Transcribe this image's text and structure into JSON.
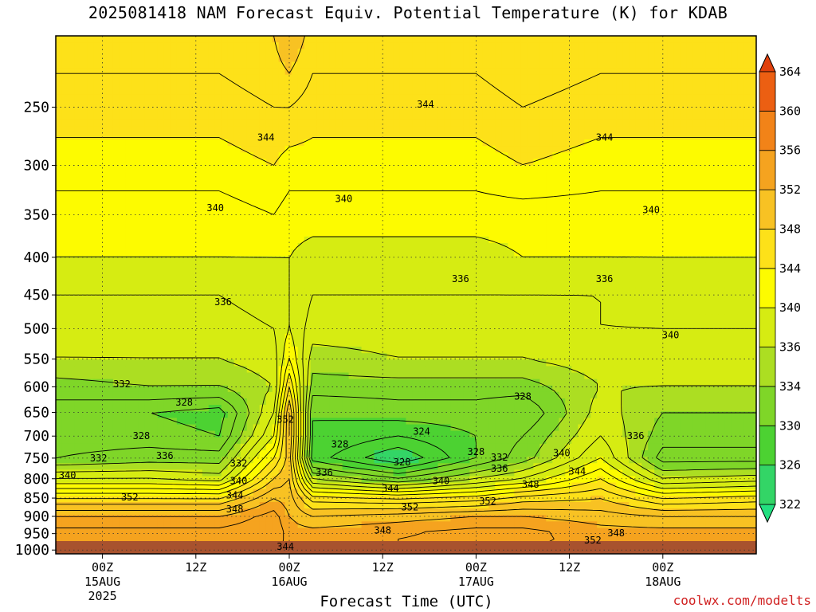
{
  "title": "2025081418 NAM Forecast Equiv. Potential Temperature (K) for KDAB",
  "credit": "coolwx.com/modelts",
  "chart_data": {
    "type": "heatmap",
    "title": "2025081418 NAM Forecast Equiv. Potential Temperature (K) for KDAB",
    "xlabel": "Forecast Time (UTC)",
    "ylabel": "",
    "x_range_hours": [
      -6,
      84
    ],
    "y_range_hPa": [
      1012,
      200
    ],
    "y_axis": "pressure (inverted, log-like)",
    "grid": true,
    "y_ticks": [
      250,
      300,
      350,
      400,
      450,
      500,
      550,
      600,
      650,
      700,
      750,
      800,
      850,
      900,
      950,
      1000
    ],
    "x_ticks": [
      {
        "hour": 0,
        "lines": [
          "00Z",
          "15AUG",
          "2025"
        ]
      },
      {
        "hour": 12,
        "lines": [
          "12Z"
        ]
      },
      {
        "hour": 24,
        "lines": [
          "00Z",
          "16AUG"
        ]
      },
      {
        "hour": 36,
        "lines": [
          "12Z"
        ]
      },
      {
        "hour": 48,
        "lines": [
          "00Z",
          "17AUG"
        ]
      },
      {
        "hour": 60,
        "lines": [
          "12Z"
        ]
      },
      {
        "hour": 72,
        "lines": [
          "00Z",
          "18AUG"
        ]
      }
    ],
    "colorbar": {
      "label_values": [
        322,
        326,
        330,
        334,
        336,
        340,
        344,
        348,
        352,
        356,
        360,
        364
      ],
      "bins": [
        {
          "lo": 318,
          "hi": 322,
          "color": "#22e080"
        },
        {
          "lo": 322,
          "hi": 326,
          "color": "#33d566"
        },
        {
          "lo": 326,
          "hi": 330,
          "color": "#4cd232"
        },
        {
          "lo": 330,
          "hi": 334,
          "color": "#7fd628"
        },
        {
          "lo": 334,
          "hi": 336,
          "color": "#acde22"
        },
        {
          "lo": 336,
          "hi": 340,
          "color": "#d6ec12"
        },
        {
          "lo": 340,
          "hi": 344,
          "color": "#fdfb00"
        },
        {
          "lo": 344,
          "hi": 348,
          "color": "#fde119"
        },
        {
          "lo": 348,
          "hi": 352,
          "color": "#f8c223"
        },
        {
          "lo": 352,
          "hi": 356,
          "color": "#f5a31f"
        },
        {
          "lo": 356,
          "hi": 360,
          "color": "#f28318"
        },
        {
          "lo": 360,
          "hi": 364,
          "color": "#ec5f12"
        },
        {
          "lo": 364,
          "hi": 368,
          "color": "#e0400c"
        }
      ]
    },
    "surface_color": "#a8522e",
    "profile_levels_hPa": [
      200,
      250,
      300,
      350,
      400,
      450,
      500,
      550,
      600,
      650,
      700,
      750,
      800,
      850,
      900,
      950,
      1000
    ],
    "profiles": [
      {
        "hour": -6,
        "values": [
          347,
          345,
          343,
          341,
          340,
          338,
          337,
          336,
          333,
          331,
          331,
          332,
          338,
          346,
          352,
          355,
          354
        ]
      },
      {
        "hour": 6,
        "values": [
          347,
          345,
          343,
          341,
          340,
          338,
          337,
          336,
          334,
          330,
          331,
          333,
          338,
          346,
          352,
          355,
          354
        ]
      },
      {
        "hour": 15,
        "values": [
          347,
          345,
          343,
          341,
          340,
          338,
          337,
          336,
          334,
          329,
          330,
          333,
          337,
          346,
          352,
          355,
          354
        ]
      },
      {
        "hour": 22,
        "values": [
          348,
          346,
          344,
          342,
          340,
          339,
          338,
          337,
          336,
          338,
          340,
          344,
          348,
          352,
          355,
          356,
          355
        ]
      },
      {
        "hour": 24,
        "values": [
          350,
          346,
          343,
          341,
          340,
          340,
          340,
          342,
          346,
          350,
          350,
          349,
          350,
          351,
          352,
          353,
          353
        ]
      },
      {
        "hour": 27,
        "values": [
          347,
          345,
          343,
          341,
          339,
          338,
          337,
          335,
          333,
          330,
          330,
          329,
          336,
          345,
          350,
          353,
          353
        ]
      },
      {
        "hour": 38,
        "values": [
          347,
          345,
          343,
          341,
          339,
          338,
          337,
          336,
          333,
          331,
          328,
          324,
          332,
          344,
          351,
          354,
          354
        ]
      },
      {
        "hour": 48,
        "values": [
          347,
          345,
          343,
          341,
          339,
          338,
          337,
          336,
          333,
          331,
          330,
          330,
          336,
          345,
          352,
          355,
          354
        ]
      },
      {
        "hour": 54,
        "values": [
          348,
          346,
          344,
          341,
          340,
          338,
          337,
          336,
          333,
          330,
          332,
          333,
          338,
          347,
          352,
          355,
          354
        ]
      },
      {
        "hour": 64,
        "values": [
          347,
          345,
          343,
          341,
          340,
          338,
          338,
          337,
          336,
          337,
          338,
          340,
          344,
          348,
          351,
          353,
          353
        ]
      },
      {
        "hour": 72,
        "values": [
          347,
          345,
          343,
          341,
          340,
          339,
          338,
          337,
          336,
          334,
          333,
          331,
          336,
          344,
          350,
          353,
          353
        ]
      },
      {
        "hour": 84,
        "values": [
          347,
          345,
          343,
          341,
          340,
          339,
          338,
          337,
          336,
          334,
          333,
          331,
          337,
          345,
          350,
          353,
          353
        ]
      }
    ],
    "contour_labels": [
      {
        "text": "344",
        "hour": 21,
        "p": 275
      },
      {
        "text": "344",
        "hour": 41.5,
        "p": 248
      },
      {
        "text": "344",
        "hour": 64.5,
        "p": 275
      },
      {
        "text": "340",
        "hour": 14.5,
        "p": 343
      },
      {
        "text": "340",
        "hour": 31,
        "p": 333
      },
      {
        "text": "340",
        "hour": 70.5,
        "p": 345
      },
      {
        "text": "336",
        "hour": 15.5,
        "p": 460
      },
      {
        "text": "336",
        "hour": 46,
        "p": 428
      },
      {
        "text": "336",
        "hour": 64.5,
        "p": 428
      },
      {
        "text": "340",
        "hour": 73,
        "p": 510
      },
      {
        "text": "332",
        "hour": 2.5,
        "p": 595
      },
      {
        "text": "328",
        "hour": 10.5,
        "p": 630
      },
      {
        "text": "328",
        "hour": 5,
        "p": 700
      },
      {
        "text": "328",
        "hour": 54,
        "p": 618
      },
      {
        "text": "324",
        "hour": 41,
        "p": 690
      },
      {
        "text": "328",
        "hour": 30.5,
        "p": 718
      },
      {
        "text": "328",
        "hour": 38.5,
        "p": 760
      },
      {
        "text": "336",
        "hour": 8,
        "p": 745
      },
      {
        "text": "332",
        "hour": -0.5,
        "p": 750
      },
      {
        "text": "340",
        "hour": -4.5,
        "p": 792
      },
      {
        "text": "332",
        "hour": 17.5,
        "p": 762
      },
      {
        "text": "340",
        "hour": 17.5,
        "p": 805
      },
      {
        "text": "344",
        "hour": 17,
        "p": 842
      },
      {
        "text": "348",
        "hour": 17,
        "p": 880
      },
      {
        "text": "352",
        "hour": 3.5,
        "p": 848
      },
      {
        "text": "352",
        "hour": 23.5,
        "p": 665
      },
      {
        "text": "336",
        "hour": 28.5,
        "p": 785
      },
      {
        "text": "344",
        "hour": 37,
        "p": 825
      },
      {
        "text": "340",
        "hour": 43.5,
        "p": 805
      },
      {
        "text": "352",
        "hour": 39.5,
        "p": 875
      },
      {
        "text": "348",
        "hour": 36,
        "p": 940
      },
      {
        "text": "328",
        "hour": 48,
        "p": 735
      },
      {
        "text": "332",
        "hour": 51,
        "p": 748
      },
      {
        "text": "336",
        "hour": 51,
        "p": 775
      },
      {
        "text": "348",
        "hour": 55,
        "p": 815
      },
      {
        "text": "352",
        "hour": 49.5,
        "p": 858
      },
      {
        "text": "340",
        "hour": 59,
        "p": 738
      },
      {
        "text": "344",
        "hour": 61,
        "p": 782
      },
      {
        "text": "336",
        "hour": 68.5,
        "p": 700
      },
      {
        "text": "352",
        "hour": 63,
        "p": 970
      },
      {
        "text": "348",
        "hour": 66,
        "p": 948
      },
      {
        "text": "344",
        "hour": 23.5,
        "p": 990
      }
    ]
  }
}
